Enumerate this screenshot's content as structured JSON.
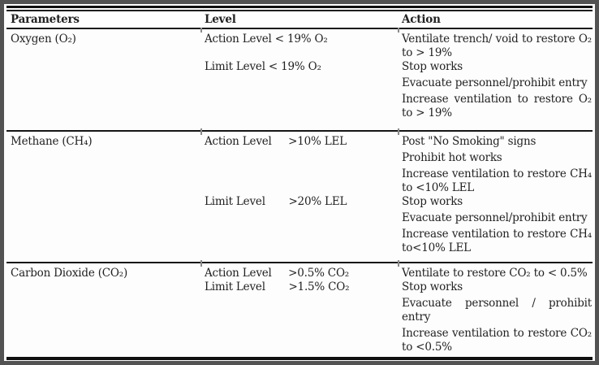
{
  "table": {
    "headers": [
      "Parameters",
      "Level",
      "Action"
    ],
    "sections": [
      {
        "parameter": "Oxygen (O₂)",
        "subrows": [
          {
            "level": "Action Level < 19% O₂",
            "actions": [
              "Ventilate trench/ void to restore O₂ to > 19%"
            ]
          },
          {
            "level": "Limit Level < 19% O₂",
            "actions": [
              "Stop works",
              "Evacuate personnel/prohibit entry",
              "Increase ventilation to restore O₂ to > 19%"
            ]
          }
        ]
      },
      {
        "parameter": "Methane (CH₄)",
        "subrows": [
          {
            "level": "Action Level     >10% LEL",
            "actions": [
              "Post \"No Smoking\" signs",
              "Prohibit hot works",
              "Increase ventilation to restore CH₄ to <10% LEL"
            ]
          },
          {
            "level": "Limit Level       >20% LEL",
            "actions": [
              "Stop works",
              "Evacuate personnel/prohibit entry",
              "Increase ventilation to restore CH₄ to<10% LEL"
            ]
          }
        ]
      },
      {
        "parameter": "Carbon Dioxide (CO₂)",
        "subrows": [
          {
            "level": "Action Level     >0.5% CO₂",
            "actions": [
              "Ventilate to restore CO₂ to < 0.5%"
            ]
          },
          {
            "level": "Limit Level       >1.5% CO₂",
            "actions": [
              "Stop works",
              "Evacuate personnel / prohibit entry",
              "Increase ventilation to restore CO₂ to <0.5%"
            ]
          }
        ]
      }
    ]
  }
}
